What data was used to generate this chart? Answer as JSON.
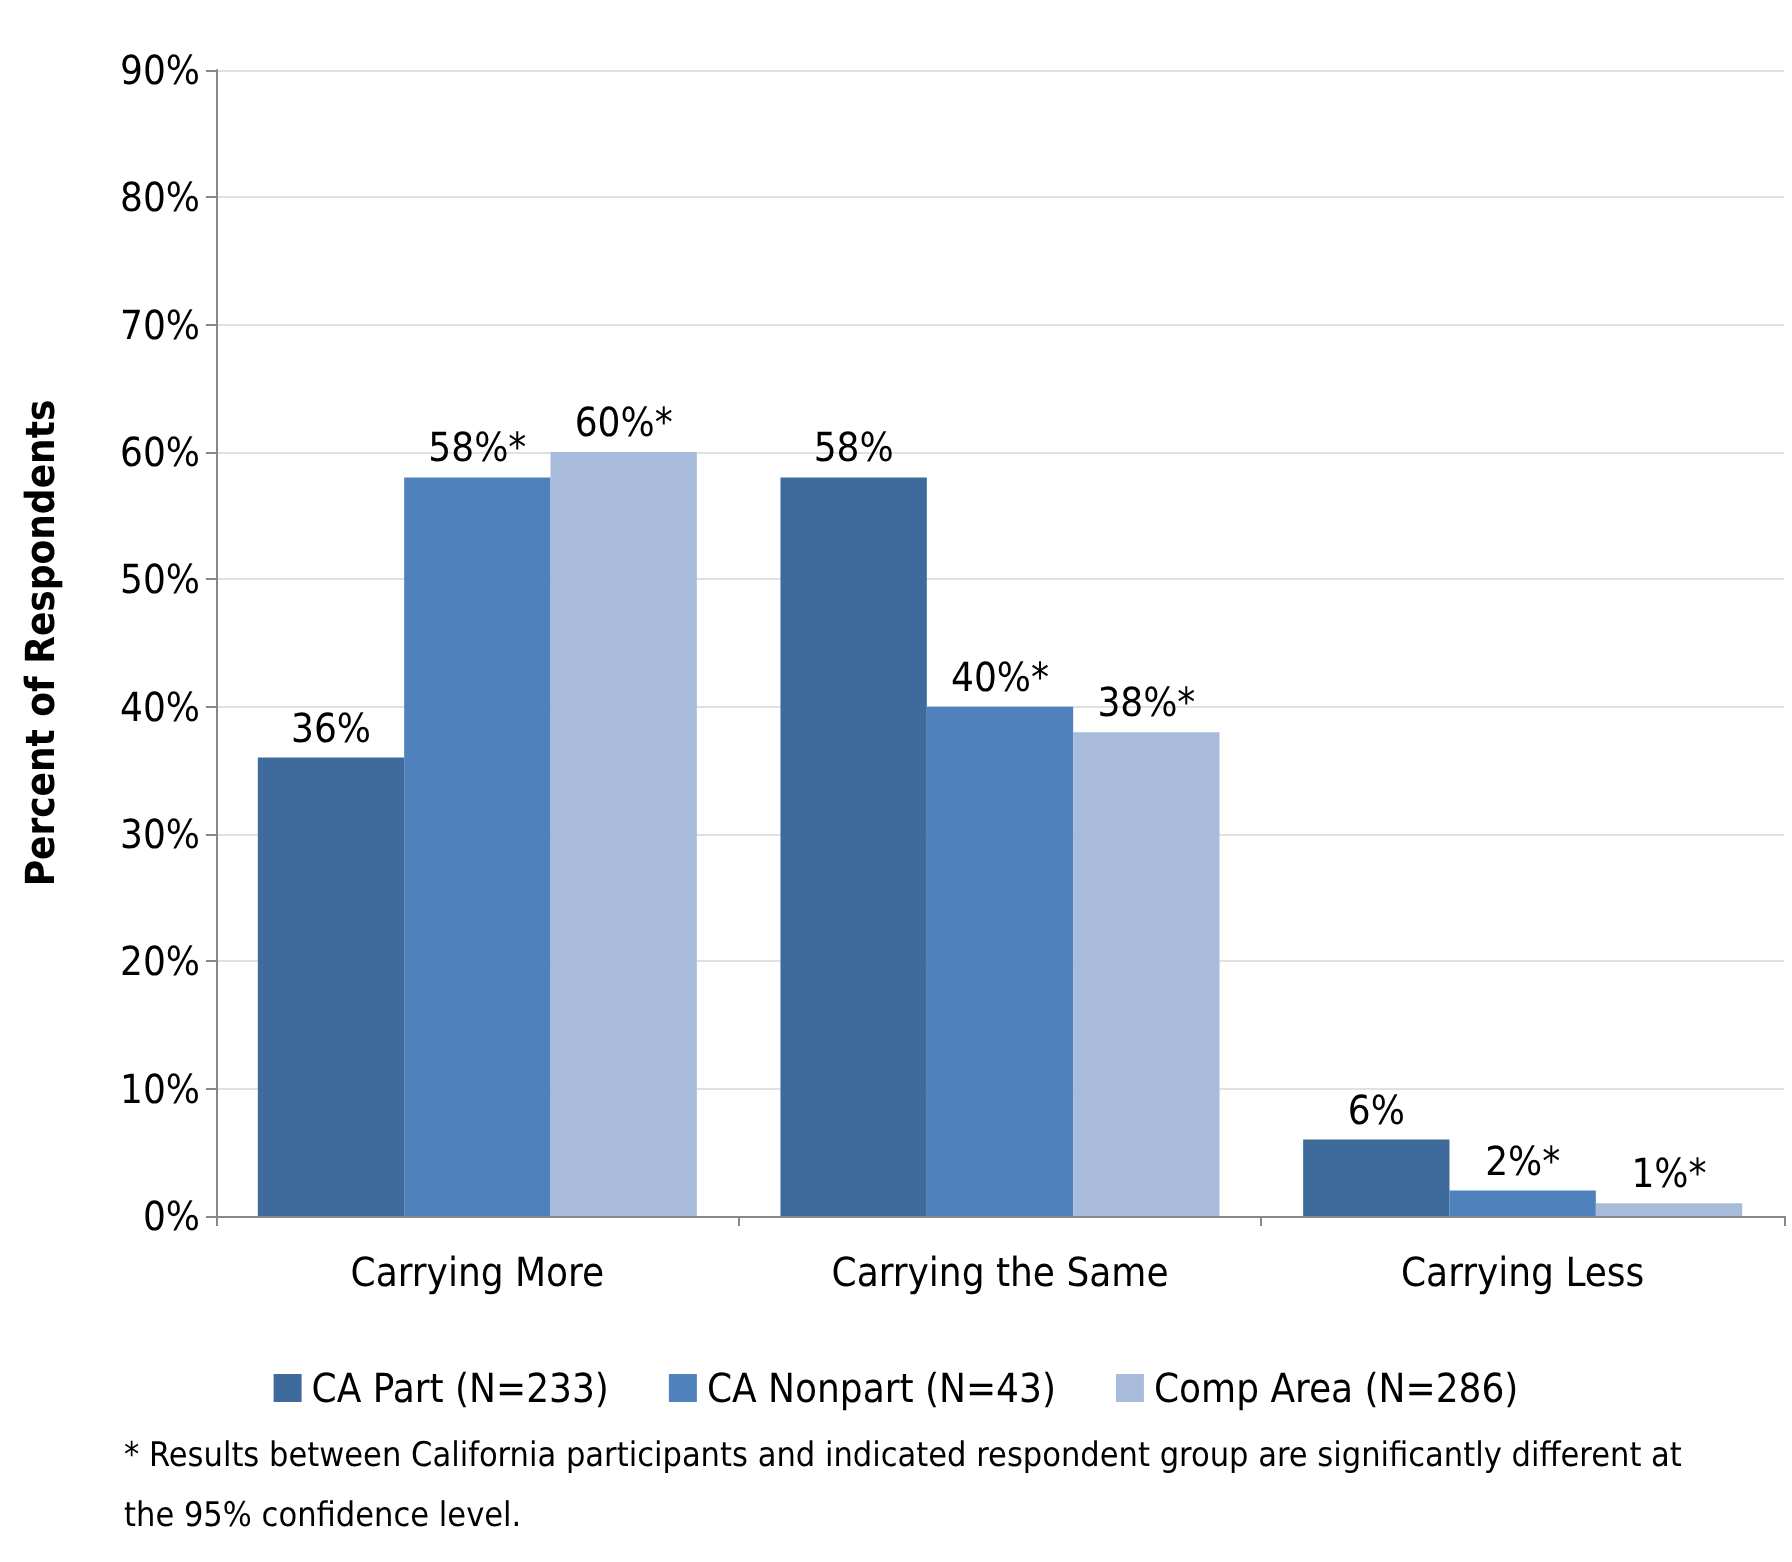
{
  "chart_data": {
    "type": "bar",
    "ylabel": "Percent of Respondents",
    "categories": [
      "Carrying More",
      "Carrying the Same",
      "Carrying Less"
    ],
    "series": [
      {
        "name": "CA Part (N=233)",
        "color": "#3e6a9c",
        "values": [
          36,
          58,
          6
        ],
        "value_labels": [
          "36%",
          "58%",
          "6%"
        ]
      },
      {
        "name": "CA Nonpart (N=43)",
        "color": "#4f81bd",
        "values": [
          58,
          40,
          2
        ],
        "value_labels": [
          "58%*",
          "40%*",
          "2%*"
        ]
      },
      {
        "name": "Comp Area (N=286)",
        "color": "#a9bbda",
        "values": [
          60,
          38,
          1
        ],
        "value_labels": [
          "60%*",
          "38%*",
          "1%*"
        ]
      }
    ],
    "ylim": [
      0,
      90
    ],
    "yticks": [
      {
        "value": 0,
        "label": "0%"
      },
      {
        "value": 10,
        "label": "10%"
      },
      {
        "value": 20,
        "label": "20%"
      },
      {
        "value": 30,
        "label": "30%"
      },
      {
        "value": 40,
        "label": "40%"
      },
      {
        "value": 50,
        "label": "50%"
      },
      {
        "value": 60,
        "label": "60%"
      },
      {
        "value": 70,
        "label": "70%"
      },
      {
        "value": 80,
        "label": "80%"
      },
      {
        "value": 90,
        "label": "90%"
      }
    ],
    "grid": "y",
    "legend": "bottom",
    "annotations": [
      "* Results between California participants and indicated respondent group are significantly different at the 95% confidence level."
    ]
  }
}
